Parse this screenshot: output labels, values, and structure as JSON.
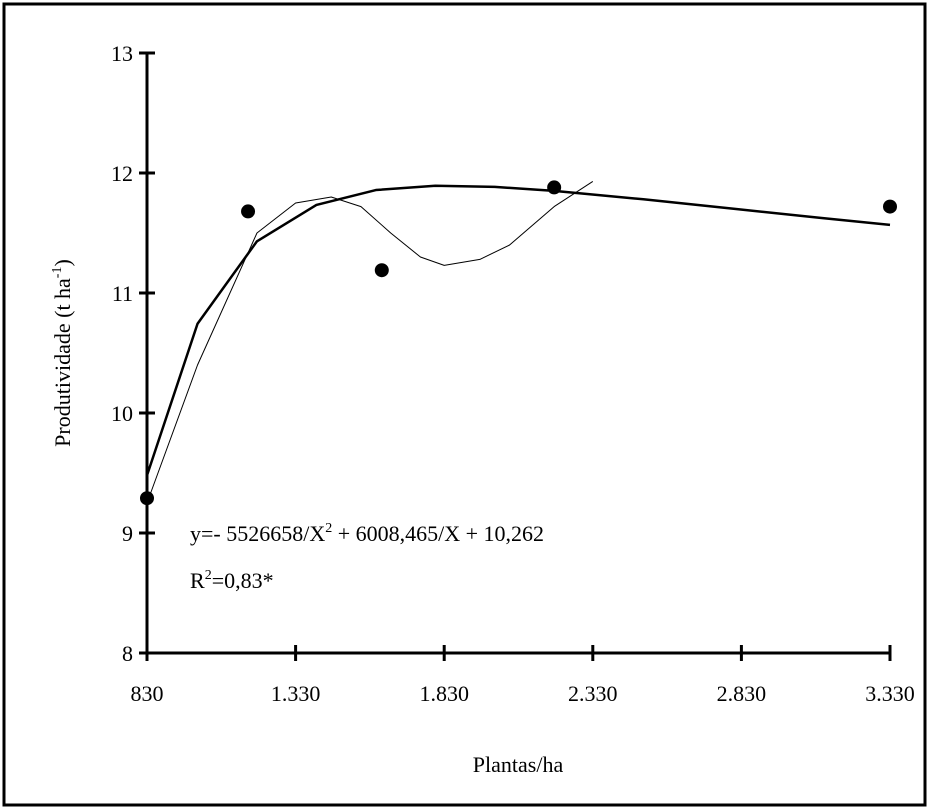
{
  "chart_data": {
    "type": "scatter",
    "x_label": "Plantas/ha",
    "y_label": [
      "Produtividade (t ha",
      "-1",
      ")"
    ],
    "equation": [
      "y=- 5526658/X",
      "2",
      " + 6008,465/X + 10,262"
    ],
    "r_squared": [
      "R",
      "2",
      "=0,83*"
    ],
    "xlim": [
      830,
      3330
    ],
    "xticks": [
      830,
      {
        "value": 1330,
        "label": "1.330"
      },
      {
        "value": 1830,
        "label": "1.830"
      },
      {
        "value": 2330,
        "label": "2.330"
      },
      {
        "value": 2830,
        "label": "2.830"
      },
      {
        "value": 3330,
        "label": "3.330"
      }
    ],
    "ylim": [
      8,
      13
    ],
    "yticks": [
      8,
      9,
      10,
      11,
      12,
      13
    ],
    "series": [
      {
        "type": "scatter",
        "color": "#000000",
        "x": [
          830,
          1170,
          1620,
          2200,
          3330
        ],
        "values": [
          9.29,
          11.68,
          11.19,
          11.88,
          11.72
        ]
      },
      {
        "type": "line",
        "color": "#000000",
        "line_width": 2.5,
        "x": [
          830,
          1000,
          1200,
          1400,
          1600,
          1800,
          2000,
          2200,
          2500,
          2800,
          3100,
          3330
        ],
        "values": [
          9.48,
          10.744,
          11.431,
          11.734,
          11.858,
          11.894,
          11.884,
          11.851,
          11.781,
          11.703,
          11.625,
          11.568
        ]
      },
      {
        "type": "line",
        "color": "#000000",
        "line_width": 1,
        "x": [
          830,
          1000,
          1200,
          1330,
          1450,
          1550,
          1650,
          1750,
          1830,
          1950,
          2050,
          2200,
          2330
        ],
        "values": [
          9.25,
          10.4,
          11.5,
          11.75,
          11.8,
          11.72,
          11.5,
          11.3,
          11.23,
          11.28,
          11.4,
          11.72,
          11.93
        ]
      }
    ]
  }
}
